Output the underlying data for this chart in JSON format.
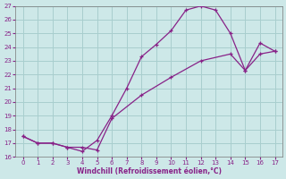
{
  "xlabel": "Windchill (Refroidissement éolien,°C)",
  "bg_color": "#cde8e8",
  "grid_color": "#a8cece",
  "line_color": "#882288",
  "xlim": [
    -0.5,
    17.5
  ],
  "ylim": [
    16,
    27
  ],
  "xticks": [
    0,
    1,
    2,
    3,
    4,
    5,
    6,
    7,
    8,
    9,
    10,
    11,
    12,
    13,
    14,
    15,
    16,
    17
  ],
  "yticks": [
    16,
    17,
    18,
    19,
    20,
    21,
    22,
    23,
    24,
    25,
    26,
    27
  ],
  "line1_x": [
    0,
    1,
    2,
    3,
    4,
    5,
    6,
    7,
    8,
    9,
    10,
    11,
    12,
    13,
    14,
    15,
    16,
    17
  ],
  "line1_y": [
    17.5,
    17.0,
    17.0,
    16.7,
    16.4,
    17.2,
    19.0,
    21.0,
    23.3,
    24.2,
    25.2,
    26.7,
    27.0,
    26.7,
    25.0,
    22.3,
    24.3,
    23.7
  ],
  "line2_x": [
    0,
    1,
    2,
    3,
    4,
    5,
    6,
    8,
    10,
    12,
    14,
    15,
    16,
    17
  ],
  "line2_y": [
    17.5,
    17.0,
    17.0,
    16.7,
    16.7,
    16.5,
    18.8,
    20.5,
    21.8,
    23.0,
    23.5,
    22.3,
    23.5,
    23.7
  ]
}
